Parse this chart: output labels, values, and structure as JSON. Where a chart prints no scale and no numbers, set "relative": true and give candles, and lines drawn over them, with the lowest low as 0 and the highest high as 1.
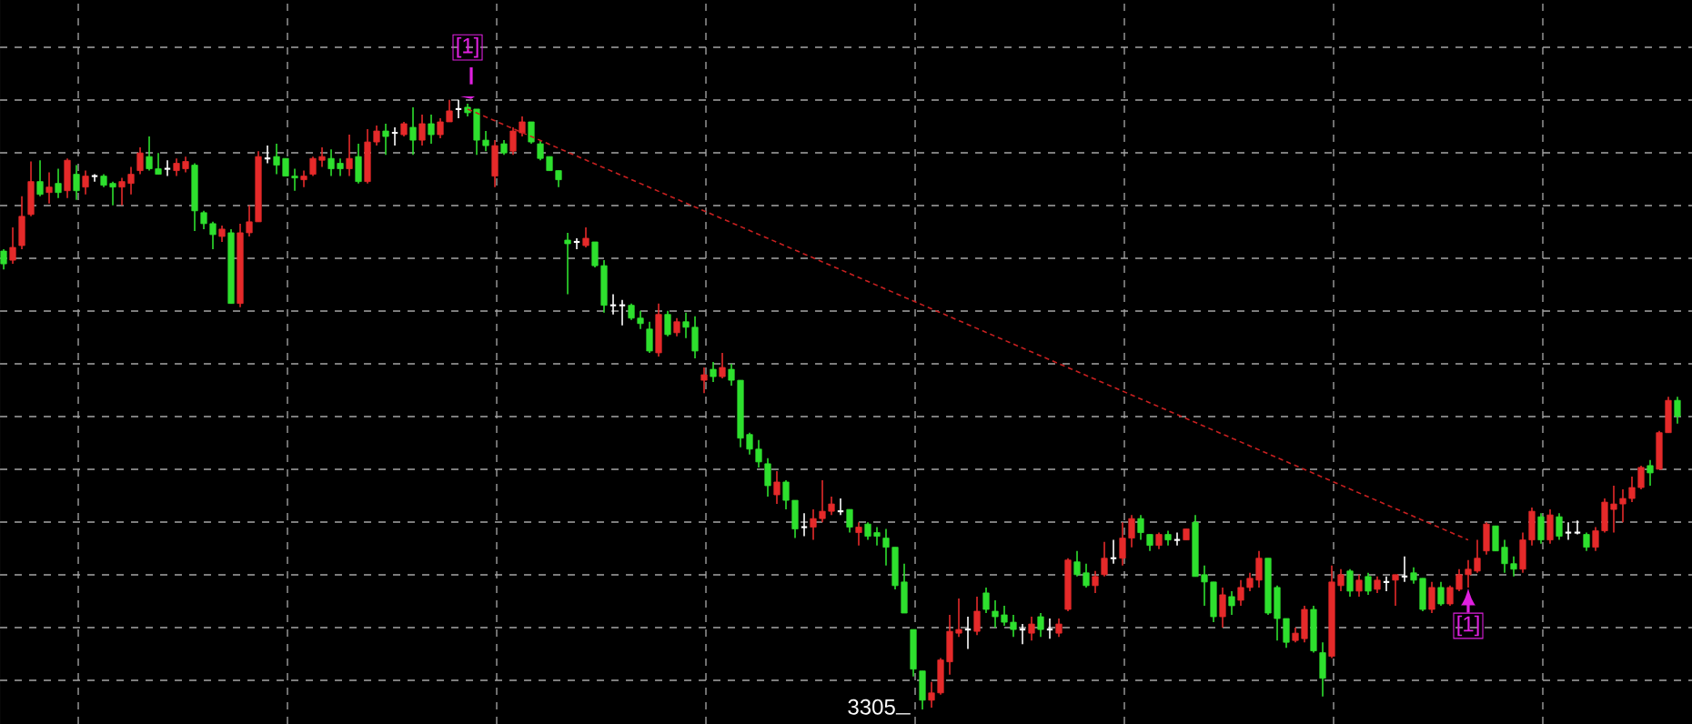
{
  "chart_data": {
    "type": "candlestick",
    "relative": true,
    "grid": true,
    "categories": [
      null,
      null,
      null,
      null,
      null,
      null,
      null,
      null,
      null,
      null,
      null,
      null,
      null,
      null,
      null,
      null,
      null,
      null,
      null,
      null,
      null,
      null,
      null,
      null,
      null,
      null,
      null,
      null,
      null,
      null,
      null,
      null,
      null,
      null,
      null,
      null,
      null,
      null,
      null,
      null,
      null,
      null,
      null,
      null,
      null,
      null,
      null,
      null,
      null,
      null,
      null,
      null,
      null,
      null,
      null,
      null,
      null,
      null,
      null,
      null,
      null,
      null,
      null,
      null,
      null,
      null,
      null,
      null,
      null,
      null,
      null,
      null,
      null,
      null,
      null,
      null,
      null,
      null,
      null,
      null,
      null,
      null,
      null,
      null,
      null,
      null,
      null,
      null,
      null,
      null,
      null,
      null,
      null,
      null,
      null,
      null,
      null,
      null,
      null,
      null,
      null,
      null,
      null,
      null,
      null,
      null,
      null,
      null,
      null,
      null,
      null,
      null,
      null,
      null,
      null,
      null,
      null,
      null,
      null,
      null,
      null,
      null,
      null,
      null,
      null,
      null,
      null,
      null,
      null,
      null,
      null,
      null,
      null,
      null,
      null,
      null,
      null,
      null,
      null,
      null,
      null,
      null,
      null,
      null,
      null,
      null,
      null,
      null,
      null,
      null,
      null,
      null,
      null,
      null,
      null,
      null,
      null,
      null,
      null,
      null,
      null,
      null,
      null,
      null,
      null,
      null,
      null,
      null,
      null,
      null,
      null,
      null,
      null,
      null,
      null,
      null,
      null,
      null,
      null,
      null,
      null,
      null,
      null,
      null,
      null
    ],
    "ohlc": [
      [
        0.752,
        0.755,
        0.722,
        0.731
      ],
      [
        0.737,
        0.791,
        0.731,
        0.758
      ],
      [
        0.761,
        0.842,
        0.755,
        0.809
      ],
      [
        0.812,
        0.899,
        0.809,
        0.866
      ],
      [
        0.866,
        0.901,
        0.842,
        0.845
      ],
      [
        0.848,
        0.881,
        0.83,
        0.857
      ],
      [
        0.863,
        0.887,
        0.839,
        0.848
      ],
      [
        0.851,
        0.904,
        0.839,
        0.901
      ],
      [
        0.878,
        0.893,
        0.836,
        0.851
      ],
      [
        0.857,
        0.884,
        0.845,
        0.875
      ],
      [
        0.875,
        0.878,
        0.866,
        0.875
      ],
      [
        0.875,
        0.878,
        0.857,
        0.86
      ],
      [
        0.863,
        0.866,
        0.827,
        0.857
      ],
      [
        0.857,
        0.872,
        0.827,
        0.866
      ],
      [
        0.863,
        0.89,
        0.845,
        0.878
      ],
      [
        0.884,
        0.922,
        0.878,
        0.913
      ],
      [
        0.907,
        0.94,
        0.884,
        0.887
      ],
      [
        0.887,
        0.913,
        0.878,
        0.878
      ],
      [
        0.887,
        0.901,
        0.875,
        0.887
      ],
      [
        0.884,
        0.904,
        0.875,
        0.896
      ],
      [
        0.887,
        0.907,
        0.881,
        0.899
      ],
      [
        0.893,
        0.896,
        0.785,
        0.818
      ],
      [
        0.815,
        0.818,
        0.788,
        0.797
      ],
      [
        0.797,
        0.8,
        0.755,
        0.779
      ],
      [
        0.776,
        0.794,
        0.767,
        0.788
      ],
      [
        0.782,
        0.788,
        0.666,
        0.666
      ],
      [
        0.666,
        0.797,
        0.66,
        0.782
      ],
      [
        0.782,
        0.827,
        0.776,
        0.8
      ],
      [
        0.8,
        0.916,
        0.8,
        0.907
      ],
      [
        0.904,
        0.925,
        0.896,
        0.904
      ],
      [
        0.907,
        0.928,
        0.878,
        0.893
      ],
      [
        0.904,
        0.904,
        0.875,
        0.875
      ],
      [
        0.875,
        0.887,
        0.851,
        0.872
      ],
      [
        0.869,
        0.884,
        0.857,
        0.875
      ],
      [
        0.878,
        0.907,
        0.875,
        0.904
      ],
      [
        0.901,
        0.922,
        0.89,
        0.907
      ],
      [
        0.904,
        0.919,
        0.875,
        0.887
      ],
      [
        0.896,
        0.904,
        0.875,
        0.887
      ],
      [
        0.887,
        0.943,
        0.875,
        0.904
      ],
      [
        0.907,
        0.928,
        0.863,
        0.866
      ],
      [
        0.866,
        0.952,
        0.863,
        0.931
      ],
      [
        0.931,
        0.958,
        0.925,
        0.949
      ],
      [
        0.949,
        0.961,
        0.91,
        0.94
      ],
      [
        0.946,
        0.955,
        0.925,
        0.946
      ],
      [
        0.943,
        0.964,
        0.94,
        0.961
      ],
      [
        0.955,
        0.988,
        0.91,
        0.934
      ],
      [
        0.934,
        0.976,
        0.925,
        0.961
      ],
      [
        0.961,
        0.976,
        0.928,
        0.943
      ],
      [
        0.943,
        0.97,
        0.937,
        0.964
      ],
      [
        0.964,
        1,
        0.964,
        0.982
      ],
      [
        0.985,
        1,
        0.97,
        0.985
      ],
      [
        0.988,
        0.994,
        0.973,
        0.979
      ],
      [
        0.985,
        0.985,
        0.91,
        0.934
      ],
      [
        0.934,
        0.949,
        0.916,
        0.925
      ],
      [
        0.875,
        0.934,
        0.857,
        0.925
      ],
      [
        0.928,
        0.934,
        0.91,
        0.913
      ],
      [
        0.916,
        0.955,
        0.91,
        0.949
      ],
      [
        0.946,
        0.973,
        0.94,
        0.964
      ],
      [
        0.964,
        0.964,
        0.928,
        0.931
      ],
      [
        0.928,
        0.934,
        0.901,
        0.904
      ],
      [
        0.907,
        0.907,
        0.884,
        0.884
      ],
      [
        0.884,
        0.884,
        0.857,
        0.869
      ],
      [
        0.77,
        0.782,
        0.681,
        0.764
      ],
      [
        0.767,
        0.773,
        0.755,
        0.767
      ],
      [
        0.761,
        0.791,
        0.758,
        0.773
      ],
      [
        0.767,
        0.767,
        0.725,
        0.728
      ],
      [
        0.728,
        0.737,
        0.651,
        0.663
      ],
      [
        0.663,
        0.681,
        0.648,
        0.663
      ],
      [
        0.663,
        0.672,
        0.63,
        0.663
      ],
      [
        0.663,
        0.666,
        0.639,
        0.642
      ],
      [
        0.642,
        0.654,
        0.624,
        0.633
      ],
      [
        0.624,
        0.636,
        0.585,
        0.588
      ],
      [
        0.585,
        0.666,
        0.579,
        0.648
      ],
      [
        0.648,
        0.654,
        0.612,
        0.615
      ],
      [
        0.618,
        0.642,
        0.612,
        0.636
      ],
      [
        0.636,
        0.651,
        0.609,
        0.627
      ],
      [
        0.627,
        0.645,
        0.576,
        0.588
      ],
      [
        0.54,
        0.561,
        0.519,
        0.549
      ],
      [
        0.558,
        0.57,
        0.537,
        0.546
      ],
      [
        0.546,
        0.585,
        0.543,
        0.561
      ],
      [
        0.558,
        0.567,
        0.531,
        0.54
      ],
      [
        0.54,
        0.54,
        0.43,
        0.445
      ],
      [
        0.451,
        0.454,
        0.418,
        0.427
      ],
      [
        0.427,
        0.442,
        0.397,
        0.406
      ],
      [
        0.403,
        0.412,
        0.349,
        0.367
      ],
      [
        0.352,
        0.391,
        0.337,
        0.373
      ],
      [
        0.373,
        0.376,
        0.328,
        0.343
      ],
      [
        0.343,
        0.343,
        0.281,
        0.296
      ],
      [
        0.299,
        0.322,
        0.284,
        0.299
      ],
      [
        0.299,
        0.328,
        0.278,
        0.313
      ],
      [
        0.313,
        0.376,
        0.307,
        0.325
      ],
      [
        0.325,
        0.349,
        0.319,
        0.337
      ],
      [
        0.325,
        0.346,
        0.319,
        0.325
      ],
      [
        0.328,
        0.328,
        0.29,
        0.299
      ],
      [
        0.29,
        0.307,
        0.269,
        0.299
      ],
      [
        0.304,
        0.307,
        0.278,
        0.284
      ],
      [
        0.29,
        0.299,
        0.269,
        0.284
      ],
      [
        0.281,
        0.296,
        0.236,
        0.266
      ],
      [
        0.266,
        0.266,
        0.197,
        0.203
      ],
      [
        0.209,
        0.239,
        0.158,
        0.158
      ],
      [
        0.131,
        0.131,
        0.054,
        0.066
      ],
      [
        0.063,
        0.063,
        0,
        0.015
      ],
      [
        0.015,
        0.045,
        0.003,
        0.027
      ],
      [
        0.027,
        0.084,
        0.024,
        0.081
      ],
      [
        0.078,
        0.155,
        0.057,
        0.128
      ],
      [
        0.125,
        0.182,
        0.119,
        0.131
      ],
      [
        0.131,
        0.152,
        0.099,
        0.131
      ],
      [
        0.128,
        0.185,
        0.122,
        0.161
      ],
      [
        0.191,
        0.2,
        0.158,
        0.164
      ],
      [
        0.161,
        0.179,
        0.134,
        0.152
      ],
      [
        0.155,
        0.17,
        0.137,
        0.143
      ],
      [
        0.143,
        0.155,
        0.119,
        0.131
      ],
      [
        0.131,
        0.14,
        0.107,
        0.131
      ],
      [
        0.125,
        0.152,
        0.113,
        0.14
      ],
      [
        0.152,
        0.158,
        0.119,
        0.131
      ],
      [
        0.131,
        0.149,
        0.116,
        0.131
      ],
      [
        0.125,
        0.149,
        0.119,
        0.14
      ],
      [
        0.164,
        0.248,
        0.161,
        0.245
      ],
      [
        0.242,
        0.26,
        0.218,
        0.221
      ],
      [
        0.224,
        0.239,
        0.2,
        0.203
      ],
      [
        0.203,
        0.227,
        0.191,
        0.218
      ],
      [
        0.221,
        0.275,
        0.218,
        0.248
      ],
      [
        0.248,
        0.278,
        0.239,
        0.248
      ],
      [
        0.248,
        0.307,
        0.236,
        0.281
      ],
      [
        0.281,
        0.319,
        0.266,
        0.313
      ],
      [
        0.313,
        0.319,
        0.278,
        0.29
      ],
      [
        0.287,
        0.287,
        0.26,
        0.269
      ],
      [
        0.269,
        0.29,
        0.263,
        0.287
      ],
      [
        0.287,
        0.293,
        0.269,
        0.278
      ],
      [
        0.278,
        0.29,
        0.269,
        0.278
      ],
      [
        0.278,
        0.296,
        0.278,
        0.296
      ],
      [
        0.307,
        0.319,
        0.218,
        0.218
      ],
      [
        0.221,
        0.236,
        0.17,
        0.209
      ],
      [
        0.209,
        0.209,
        0.143,
        0.152
      ],
      [
        0.152,
        0.2,
        0.134,
        0.188
      ],
      [
        0.185,
        0.194,
        0.155,
        0.17
      ],
      [
        0.179,
        0.212,
        0.17,
        0.2
      ],
      [
        0.2,
        0.224,
        0.194,
        0.215
      ],
      [
        0.212,
        0.26,
        0.2,
        0.248
      ],
      [
        0.248,
        0.248,
        0.155,
        0.158
      ],
      [
        0.2,
        0.203,
        0.113,
        0.149
      ],
      [
        0.149,
        0.149,
        0.101,
        0.11
      ],
      [
        0.113,
        0.134,
        0.11,
        0.125
      ],
      [
        0.116,
        0.17,
        0.11,
        0.164
      ],
      [
        0.164,
        0.17,
        0.093,
        0.096
      ],
      [
        0.093,
        0.11,
        0.021,
        0.051
      ],
      [
        0.087,
        0.236,
        0.084,
        0.209
      ],
      [
        0.203,
        0.23,
        0.194,
        0.221
      ],
      [
        0.227,
        0.23,
        0.185,
        0.194
      ],
      [
        0.194,
        0.221,
        0.185,
        0.212
      ],
      [
        0.218,
        0.224,
        0.188,
        0.194
      ],
      [
        0.197,
        0.218,
        0.191,
        0.212
      ],
      [
        0.209,
        0.218,
        0.194,
        0.209
      ],
      [
        0.212,
        0.221,
        0.17,
        0.221
      ],
      [
        0.218,
        0.251,
        0.209,
        0.218
      ],
      [
        0.224,
        0.233,
        0.206,
        0.212
      ],
      [
        0.215,
        0.215,
        0.161,
        0.164
      ],
      [
        0.164,
        0.209,
        0.158,
        0.2
      ],
      [
        0.2,
        0.209,
        0.17,
        0.173
      ],
      [
        0.173,
        0.203,
        0.17,
        0.2
      ],
      [
        0.197,
        0.23,
        0.194,
        0.221
      ],
      [
        0.221,
        0.245,
        0.2,
        0.23
      ],
      [
        0.227,
        0.278,
        0.224,
        0.248
      ],
      [
        0.26,
        0.307,
        0.254,
        0.304
      ],
      [
        0.301,
        0.301,
        0.26,
        0.26
      ],
      [
        0.266,
        0.278,
        0.224,
        0.239
      ],
      [
        0.239,
        0.251,
        0.218,
        0.23
      ],
      [
        0.23,
        0.29,
        0.224,
        0.278
      ],
      [
        0.278,
        0.331,
        0.269,
        0.325
      ],
      [
        0.316,
        0.322,
        0.272,
        0.278
      ],
      [
        0.278,
        0.328,
        0.272,
        0.319
      ],
      [
        0.316,
        0.322,
        0.278,
        0.284
      ],
      [
        0.29,
        0.307,
        0.278,
        0.29
      ],
      [
        0.29,
        0.31,
        0.287,
        0.29
      ],
      [
        0.287,
        0.29,
        0.26,
        0.266
      ],
      [
        0.266,
        0.299,
        0.26,
        0.293
      ],
      [
        0.293,
        0.346,
        0.29,
        0.34
      ],
      [
        0.328,
        0.367,
        0.29,
        0.337
      ],
      [
        0.337,
        0.361,
        0.307,
        0.346
      ],
      [
        0.346,
        0.382,
        0.34,
        0.364
      ],
      [
        0.364,
        0.4,
        0.361,
        0.397
      ],
      [
        0.4,
        0.409,
        0.367,
        0.388
      ],
      [
        0.394,
        0.457,
        0.394,
        0.454
      ],
      [
        0.454,
        0.513,
        0.454,
        0.507
      ],
      [
        0.507,
        0.513,
        0.469,
        0.481
      ]
    ],
    "series": [
      {
        "type": "line",
        "values": [
          null,
          null,
          null,
          null,
          null,
          null,
          null,
          null,
          null,
          null,
          null,
          null,
          null,
          null,
          null,
          null,
          null,
          null,
          null,
          null,
          null,
          null,
          null,
          null,
          null,
          null,
          null,
          null,
          null,
          null,
          null,
          null,
          null,
          null,
          null,
          null,
          null,
          null,
          null,
          null,
          null,
          null,
          null,
          null,
          null,
          null,
          null,
          null,
          null,
          null,
          null,
          0.985,
          null,
          null,
          null,
          null,
          null,
          null,
          null,
          null,
          null,
          null,
          null,
          null,
          null,
          null,
          null,
          null,
          null,
          null,
          null,
          null,
          null,
          null,
          null,
          null,
          null,
          null,
          null,
          null,
          null,
          null,
          null,
          null,
          null,
          null,
          null,
          null,
          null,
          null,
          null,
          null,
          null,
          null,
          null,
          null,
          null,
          null,
          null,
          null,
          null,
          null,
          null,
          null,
          null,
          null,
          null,
          null,
          null,
          null,
          null,
          null,
          null,
          null,
          null,
          null,
          null,
          null,
          null,
          null,
          null,
          null,
          null,
          null,
          null,
          null,
          null,
          null,
          null,
          null,
          null,
          null,
          null,
          null,
          null,
          null,
          null,
          null,
          null,
          null,
          null,
          null,
          null,
          null,
          null,
          null,
          null,
          null,
          null,
          null,
          null,
          null,
          null,
          null,
          null,
          null,
          null,
          null,
          null,
          null,
          null,
          0.278,
          null,
          null,
          null,
          null,
          null,
          null,
          null,
          null,
          null,
          null,
          null,
          null,
          null,
          null,
          null,
          null,
          null,
          null,
          null,
          null,
          null,
          null,
          null
        ],
        "color": "#c82020",
        "line_style": "dashed"
      }
    ],
    "annotations": [
      "[1]",
      "[1]",
      "3305"
    ]
  }
}
